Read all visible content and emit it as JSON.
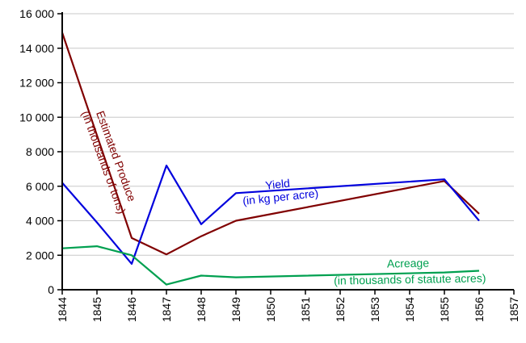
{
  "chart_data": {
    "type": "line",
    "title": "",
    "xlabel": "",
    "ylabel": "",
    "xlim": [
      1844,
      1857
    ],
    "ylim": [
      0,
      16000
    ],
    "grid": "horizontal",
    "x_ticks": [
      "1844",
      "1845",
      "1846",
      "1847",
      "1848",
      "1849",
      "1850",
      "1851",
      "1852",
      "1853",
      "1854",
      "1855",
      "1856",
      "1857"
    ],
    "y_ticks": [
      {
        "value": 0,
        "label": "0"
      },
      {
        "value": 2000,
        "label": "2 000"
      },
      {
        "value": 4000,
        "label": "4 000"
      },
      {
        "value": 6000,
        "label": "6 000"
      },
      {
        "value": 8000,
        "label": "8 000"
      },
      {
        "value": 10000,
        "label": "10 000"
      },
      {
        "value": 12000,
        "label": "12 000"
      },
      {
        "value": 14000,
        "label": "14 000"
      },
      {
        "value": 16000,
        "label": "16 000"
      }
    ],
    "series": [
      {
        "key": "produce",
        "color": "#800000",
        "label_lines": [
          "Estimated Produce",
          "(in thousands of tons)"
        ],
        "points": [
          [
            1844,
            14900
          ],
          [
            1846,
            3000
          ],
          [
            1847,
            2050
          ],
          [
            1848,
            3100
          ],
          [
            1849,
            4000
          ],
          [
            1855,
            6300
          ],
          [
            1856,
            4400
          ]
        ]
      },
      {
        "key": "yield",
        "color": "#0000dd",
        "label_lines": [
          "Yield",
          "(in kg per acre)"
        ],
        "points": [
          [
            1844,
            6200
          ],
          [
            1845,
            3900
          ],
          [
            1846,
            1500
          ],
          [
            1847,
            7200
          ],
          [
            1848,
            3800
          ],
          [
            1849,
            5600
          ],
          [
            1855,
            6400
          ],
          [
            1856,
            4000
          ]
        ]
      },
      {
        "key": "acreage",
        "color": "#00a050",
        "label_lines": [
          "Acreage",
          "(in thousands of statute acres)"
        ],
        "points": [
          [
            1844,
            2400
          ],
          [
            1845,
            2520
          ],
          [
            1846,
            2000
          ],
          [
            1847,
            300
          ],
          [
            1848,
            820
          ],
          [
            1849,
            720
          ],
          [
            1855,
            1000
          ],
          [
            1856,
            1100
          ]
        ]
      }
    ]
  }
}
